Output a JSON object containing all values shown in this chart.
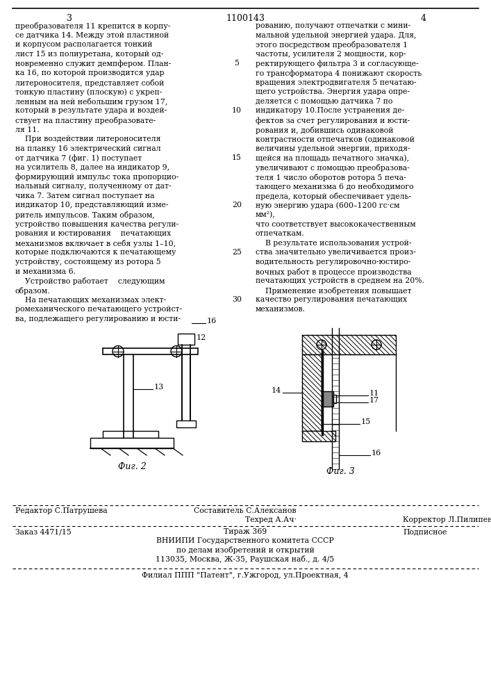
{
  "page_number_left": "3",
  "page_number_center": "1100143",
  "page_number_right": "4",
  "left_column_text": [
    "преобразователя 11 крепится в корпу-",
    "се датчика 14. Между этой пластиной",
    "и корпусом располагается тонкий",
    "лист 15 из полиуретана, который од-",
    "новременно служит демпфером. План-",
    "ка 16, по которой производится удар",
    "литероносителя, представляет собой",
    "тонкую пластину (плоскую) с укреп-",
    "ленным на ней небольшим грузом 17,",
    "который в результате удара и воздей-",
    "ствует на пластину преобразовате-",
    "ля 11.",
    "    При воздействии литероносителя",
    "на планку 16 электрический сигнал",
    "от датчика 7 (фиг. 1) поступает",
    "на усилитель 8, далее на индикатор 9,",
    "формирующий импульс тока пропорцио-",
    "нальный сигналу, полученному от дат-",
    "чика 7. Затем сигнал поступает на",
    "индикатор 10, представляющий изме-",
    "ритель импульсов. Таким образом,",
    "устройство повышения качества регули-",
    "рования и юстирования    печатающих",
    "механизмов включает в себя узлы 1–10,",
    "которые подключаются к печатающему",
    "устройству, состоящему из ротора 5",
    "и механизма 6.",
    "    Устройство работает    следующим",
    "образом.",
    "    На печатающих механизмах элект-",
    "ромеханического печатающего устройст-",
    "ва, подлежащего регулированию и юсти-"
  ],
  "right_column_text": [
    "рованию, получают отпечатки с мини-",
    "мальной удельной энергией удара. Для,",
    "этого посредством преобразователя 1",
    "частоты, усилителя 2 мощности, кор-",
    "ректирующего фильтра 3 и согласующе-",
    "го трансформатора 4 понижают скорость",
    "вращения электродвигателя 5 печатаю-",
    "щего устройства. Энергия удара опре-",
    "деляется с помощью датчика 7 по",
    "индикатору 10.После устранения де-",
    "фектов за счет регулирования и юсти-",
    "рования и, добившись одинаковой",
    "контрастности отпечатков (одинаковой",
    "величины удельной энергии, приходя-",
    "щейся на площадь печатного значка),",
    "увеличивают с помощью преобразова-",
    "теля 1 число оборотов ротора 5 печа-",
    "тающего механизма 6 до необходимого",
    "предела, который обеспечивает удель-",
    "ную энергию удара (600–1200 гс·см",
    "мм²),",
    "что соответствует высококачественным",
    "отпечаткам.",
    "    В результате использования устрой-",
    "ства значительно увеличивается произ-",
    "водительность регулировочно-юстиро-",
    "вочных работ в процессе производства",
    "печатающих устройств в среднем на 20%.",
    "    Применение изобретения повышает",
    "качество регулирования печатающих",
    "механизмов."
  ],
  "line_numbers": [
    5,
    10,
    15,
    20,
    25,
    30
  ],
  "footer_editor": "Редактор С.Патрушева",
  "footer_compiler": "Составитель С.Алексанов",
  "footer_techred": "Техред А.Ач·",
  "footer_corrector": "Корректор Л.Пилипенко",
  "footer_order": "Заказ 4471/15",
  "footer_tirazh": "Тираж 369",
  "footer_podpisnoe": "Подписное",
  "footer_vnipi": "ВНИИПИ Государственного комитета СССР",
  "footer_po_delam": "по делам изобретений и открытий",
  "footer_address": "113035, Москва, Ж-35, Раушская наб., д. 4/5",
  "footer_filial": "Филиал ППП \"Патент\", г.Ужгород, ул.Проектная, 4",
  "fig2_label": "Фиг. 2",
  "fig3_label": "Фиг. 3",
  "bg_color": "#ffffff"
}
